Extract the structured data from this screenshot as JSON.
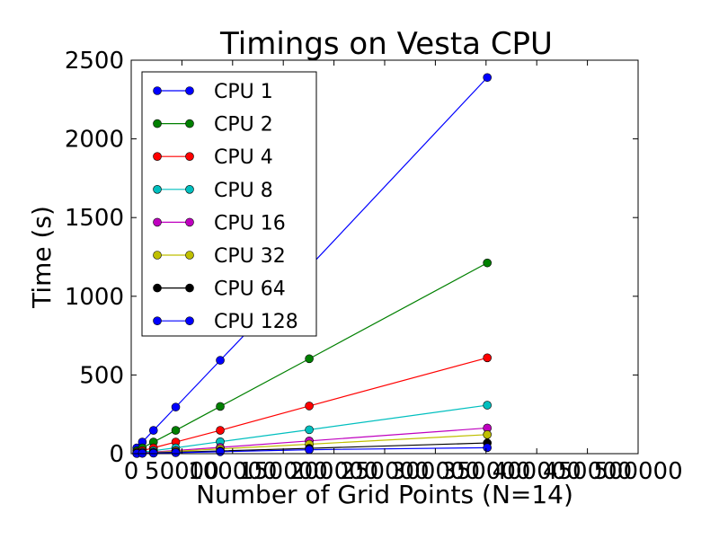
{
  "chart_data": {
    "type": "line",
    "title": "Timings on Vesta CPU",
    "xlabel": "Number of Grid Points (N=14)",
    "ylabel": "Time (s)",
    "xlim": [
      0,
      500000
    ],
    "ylim": [
      0,
      2500
    ],
    "xticks": [
      0,
      50000,
      100000,
      150000,
      200000,
      250000,
      300000,
      350000,
      400000,
      450000,
      500000
    ],
    "yticks": [
      0,
      500,
      1000,
      1500,
      2000,
      2500
    ],
    "legend_position": "upper-left",
    "grid": false,
    "x": [
      5488,
      10976,
      21952,
      43904,
      87808,
      175616,
      351232
    ],
    "series": [
      {
        "name": "CPU 1",
        "color": "#0000ff",
        "values": [
          37,
          74,
          148,
          296,
          593,
          1186,
          2390
        ]
      },
      {
        "name": "CPU 2",
        "color": "#008000",
        "values": [
          19,
          37,
          74,
          148,
          300,
          603,
          1212
        ]
      },
      {
        "name": "CPU 4",
        "color": "#ff0000",
        "values": [
          9.5,
          19,
          37,
          74,
          148,
          303,
          609
        ]
      },
      {
        "name": "CPU 8",
        "color": "#00bfbf",
        "values": [
          5,
          9.5,
          19,
          37,
          76,
          152,
          308
        ]
      },
      {
        "name": "CPU 16",
        "color": "#bf00bf",
        "values": [
          3,
          5,
          10,
          20,
          40,
          81,
          163
        ]
      },
      {
        "name": "CPU 32",
        "color": "#bfbf00",
        "values": [
          2,
          4,
          7.5,
          15,
          30,
          60,
          121
        ]
      },
      {
        "name": "CPU 64",
        "color": "#000000",
        "values": [
          1.5,
          2.5,
          5,
          9,
          17,
          34,
          68
        ]
      },
      {
        "name": "CPU 128",
        "color": "#0000ff",
        "values": [
          1,
          2,
          3,
          6,
          12,
          25,
          38
        ]
      }
    ]
  }
}
